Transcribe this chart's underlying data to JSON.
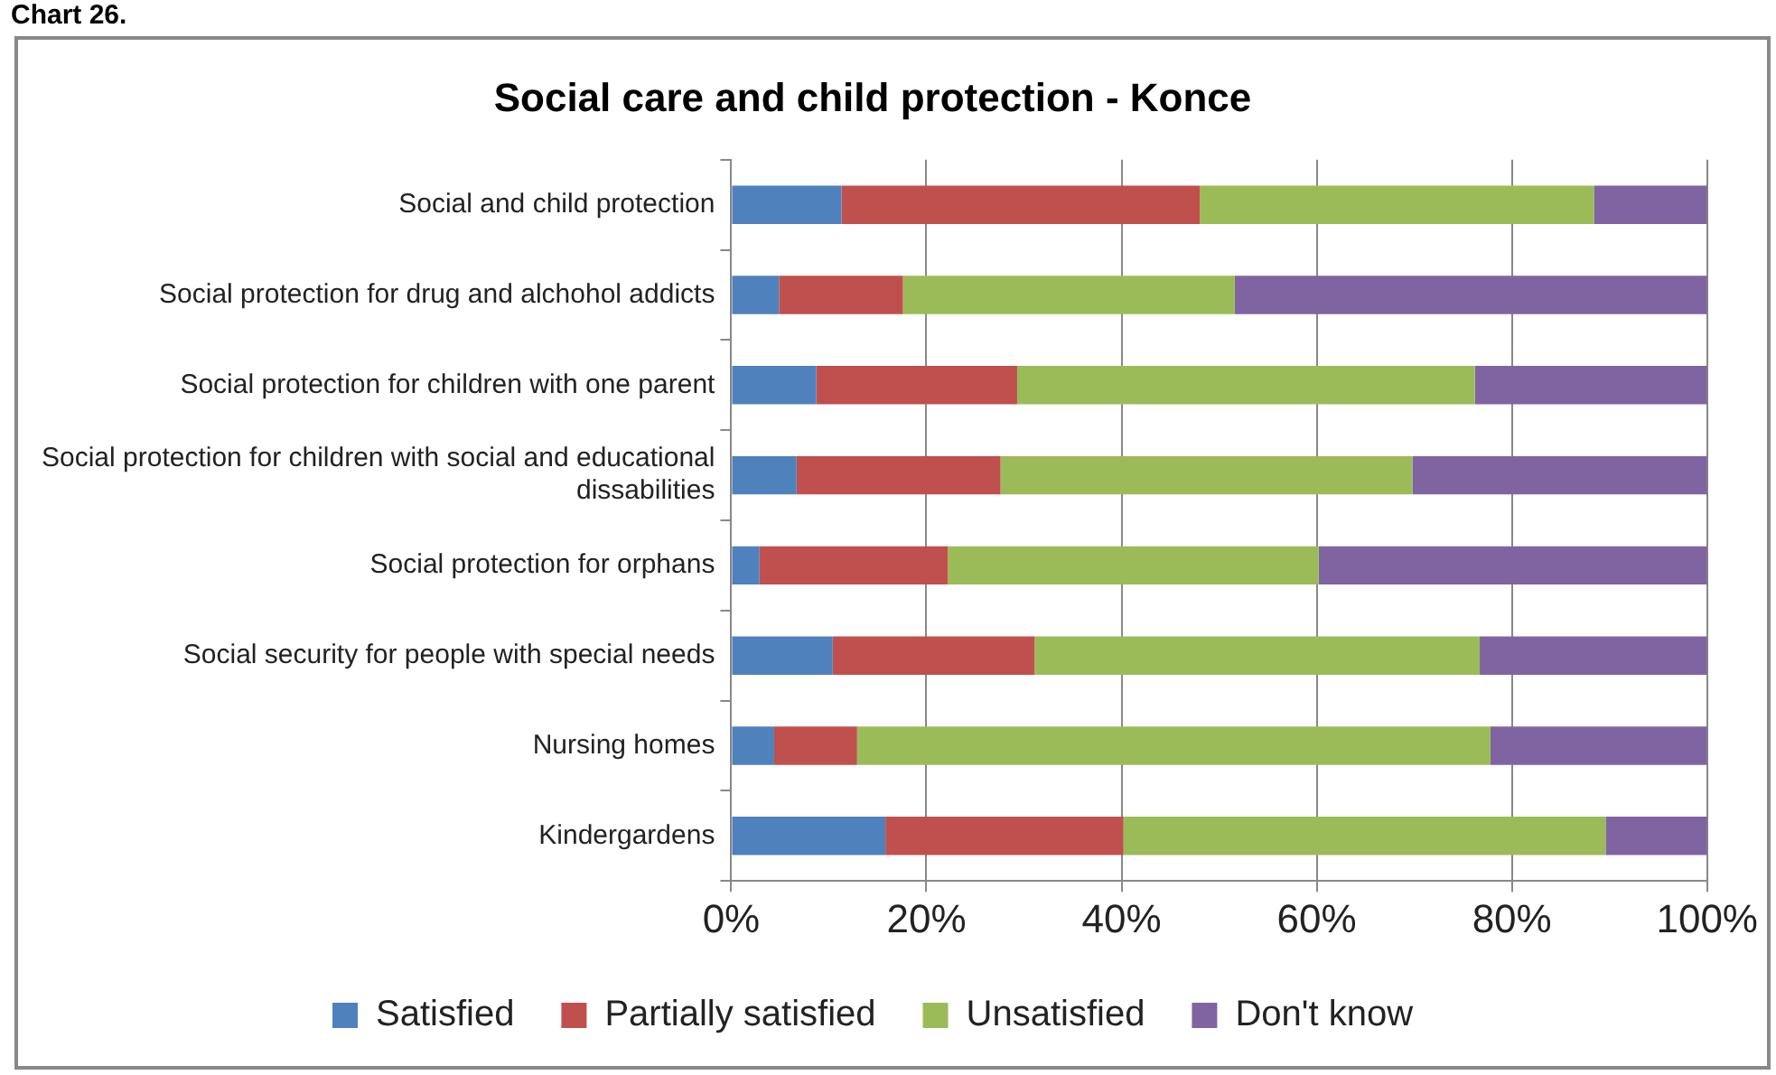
{
  "chart_data": {
    "type": "bar",
    "orientation": "horizontal",
    "stacked": true,
    "title": "Social care and child protection - Konce",
    "annotations": [
      "Chart 26."
    ],
    "categories": [
      "Social and child protection",
      "Social protection for drug and alchohol addicts",
      "Social protection for children with one parent",
      "Social protection for children with social and educational dissabilities",
      "Social protection for orphans",
      "Social security for people with special needs",
      "Nursing homes",
      "Kindergardens"
    ],
    "series": [
      {
        "name": "Satisfied",
        "color": "#4f81bd",
        "values": [
          11.3,
          4.9,
          8.7,
          6.7,
          2.9,
          10.4,
          4.4,
          15.8
        ]
      },
      {
        "name": "Partially satisfied",
        "color": "#c0504d",
        "values": [
          36.7,
          12.7,
          20.6,
          20.9,
          19.3,
          20.7,
          8.5,
          24.4
        ]
      },
      {
        "name": "Unsatisfied",
        "color": "#9bbb59",
        "values": [
          40.4,
          34,
          46.9,
          42.2,
          38,
          45.6,
          64.9,
          49.4
        ]
      },
      {
        "name": "Don't know",
        "color": "#8064a2",
        "values": [
          11.6,
          48.4,
          23.8,
          30.2,
          39.8,
          23.3,
          22.2,
          10.4
        ]
      }
    ],
    "xlim": [
      0,
      100
    ],
    "xticks": [
      {
        "value": 0,
        "label": "0%"
      },
      {
        "value": 20,
        "label": "20%"
      },
      {
        "value": 40,
        "label": "40%"
      },
      {
        "value": 60,
        "label": "60%"
      },
      {
        "value": 80,
        "label": "80%"
      },
      {
        "value": 100,
        "label": "100%"
      }
    ],
    "grid": "x",
    "legend": "bottom"
  }
}
